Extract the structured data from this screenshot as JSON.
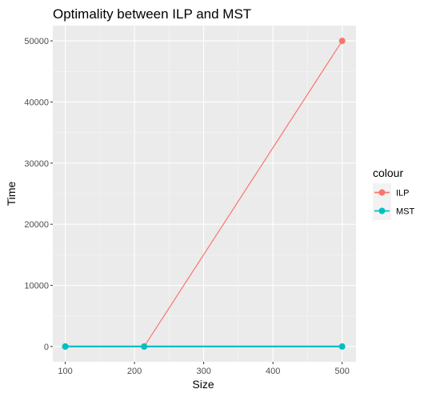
{
  "chart_data": {
    "type": "line",
    "title": "Optimality between ILP and MST",
    "xlabel": "Size",
    "ylabel": "Time",
    "xlim": [
      82,
      520
    ],
    "ylim": [
      -2500,
      52500
    ],
    "x_ticks": [
      100,
      200,
      300,
      400,
      500
    ],
    "y_ticks": [
      0,
      10000,
      20000,
      30000,
      40000,
      50000
    ],
    "grid": true,
    "legend": {
      "title": "colour",
      "position": "right"
    },
    "series": [
      {
        "name": "ILP",
        "color": "#F8766D",
        "x": [
          100,
          214,
          500
        ],
        "y": [
          0,
          0,
          50000
        ]
      },
      {
        "name": "MST",
        "color": "#00BFC4",
        "x": [
          100,
          214,
          500
        ],
        "y": [
          0,
          0,
          0
        ]
      }
    ]
  }
}
